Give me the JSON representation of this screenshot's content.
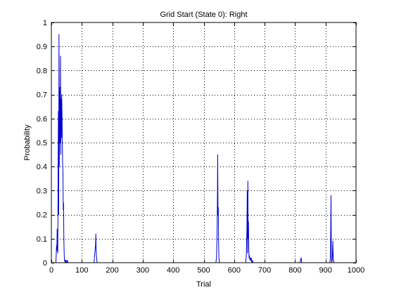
{
  "chart_data": {
    "type": "line",
    "title": "Grid Start (State 0): Right",
    "xlabel": "Trial",
    "ylabel": "Probability",
    "xlim": [
      0,
      1000
    ],
    "ylim": [
      0,
      1
    ],
    "xticks": [
      0,
      100,
      200,
      300,
      400,
      500,
      600,
      700,
      800,
      900,
      1000
    ],
    "yticks": [
      0,
      0.1,
      0.2,
      0.3,
      0.4,
      0.5,
      0.6,
      0.7,
      0.8,
      0.9,
      1
    ],
    "grid": true,
    "line_color": "#0000cc",
    "series": [
      {
        "x": [
          0,
          15,
          17,
          18,
          19,
          20,
          21,
          22,
          23,
          24,
          25,
          26,
          27,
          28,
          29,
          30,
          31,
          32,
          33,
          34,
          35,
          36,
          37,
          38,
          39,
          40,
          41,
          42,
          43,
          44,
          45,
          46,
          47,
          48,
          49,
          50,
          52,
          55,
          140,
          142,
          144,
          145,
          146,
          147,
          148,
          150,
          152,
          480,
          540,
          542,
          544,
          545,
          546,
          547,
          548,
          549,
          550,
          552,
          555,
          638,
          640,
          642,
          643,
          644,
          645,
          646,
          647,
          648,
          649,
          650,
          652,
          654,
          655,
          656,
          658,
          660,
          662,
          815,
          818,
          820,
          822,
          912,
          914,
          916,
          917,
          918,
          919,
          920,
          922,
          924,
          925,
          926,
          928,
          930,
          1000
        ],
        "y": [
          0,
          0,
          0.07,
          0.05,
          0.14,
          0.06,
          0.04,
          0.3,
          0.63,
          0.2,
          0.95,
          0.4,
          0.6,
          0.73,
          0.5,
          0.86,
          0.45,
          0.68,
          0.52,
          0.7,
          0.62,
          0.52,
          0.41,
          0.38,
          0.22,
          0.25,
          0.1,
          0.04,
          0.01,
          0.01,
          0,
          0.01,
          0,
          0.01,
          0,
          0,
          0.01,
          0,
          0,
          0.03,
          0.06,
          0.07,
          0.12,
          0.05,
          0.03,
          0,
          0,
          0,
          0,
          0.02,
          0.13,
          0.25,
          0.45,
          0.2,
          0.23,
          0.08,
          0.02,
          0,
          0,
          0,
          0.03,
          0.15,
          0.3,
          0.04,
          0.34,
          0.1,
          0.17,
          0.06,
          0.02,
          0.03,
          0.01,
          0.02,
          0.01,
          0.02,
          0,
          0.01,
          0,
          0,
          0.01,
          0.02,
          0,
          0,
          0,
          0.02,
          0.14,
          0.28,
          0.03,
          0,
          0.01,
          0.09,
          0.03,
          0.01,
          0,
          0,
          0
        ]
      }
    ]
  }
}
